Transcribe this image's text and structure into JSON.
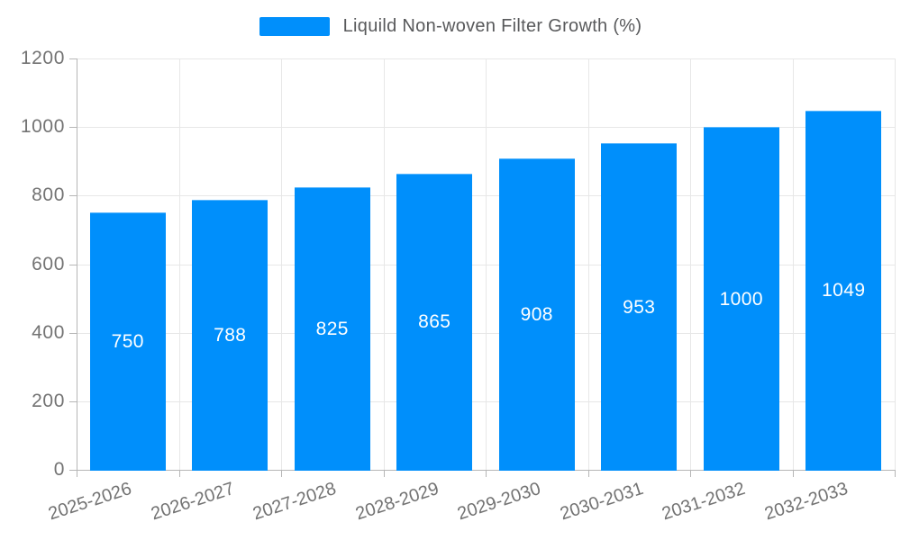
{
  "legend": {
    "items": [
      {
        "label": "Liquild Non-woven Filter Growth (%)",
        "color": "#008FFB"
      }
    ],
    "position": "top-center"
  },
  "chart_data": {
    "type": "bar",
    "title": "Liquild Non-woven Filter Growth (%)",
    "categories": [
      "2025-2026",
      "2026-2027",
      "2027-2028",
      "2028-2029",
      "2029-2030",
      "2030-2031",
      "2031-2032",
      "2032-2033"
    ],
    "series": [
      {
        "name": "Liquild Non-woven Filter Growth (%)",
        "values": [
          750,
          788,
          825,
          865,
          908,
          953,
          1000,
          1049
        ]
      }
    ],
    "value_labels": [
      "750",
      "788",
      "825",
      "865",
      "908",
      "953",
      "1000",
      "1049"
    ],
    "xlabel": "",
    "ylabel": "",
    "ylim": [
      0,
      1200
    ],
    "yticks": [
      0,
      200,
      400,
      600,
      800,
      1000,
      1200
    ],
    "grid": true,
    "legend_position": "top",
    "colors": {
      "series": "#008FFB",
      "value_label": "#FFFFFF",
      "axis_label": "#737373",
      "legend_text": "#58595B",
      "gridline": "#E7E7E7",
      "axis_line": "#B6B6B6"
    }
  }
}
